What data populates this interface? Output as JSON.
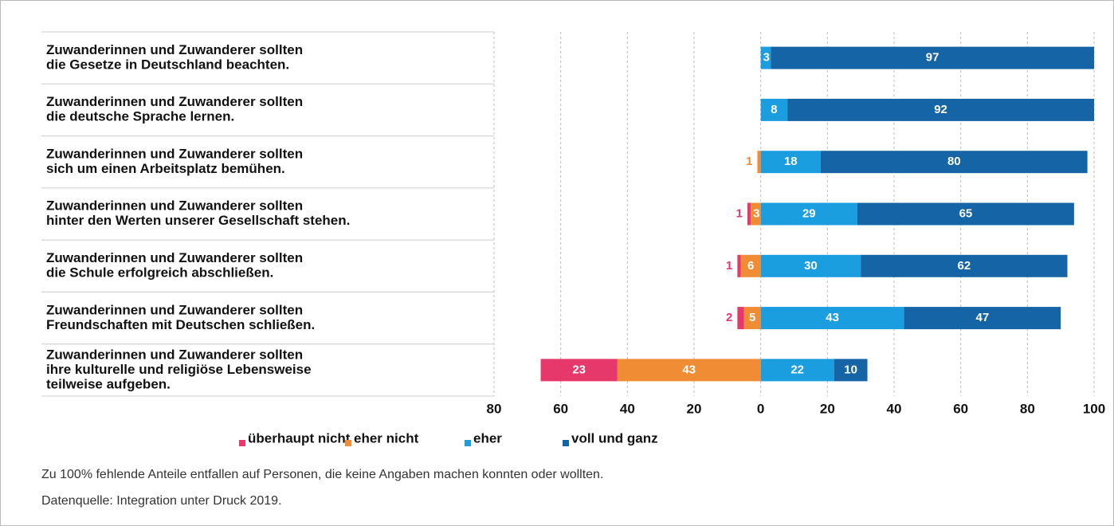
{
  "chart_data": {
    "type": "diverging-bar",
    "categories": [
      [
        "Zuwanderinnen und Zuwanderer sollten",
        "die Gesetze in Deutschland beachten."
      ],
      [
        "Zuwanderinnen und Zuwanderer sollten",
        "die deutsche Sprache lernen."
      ],
      [
        "Zuwanderinnen und Zuwanderer sollten",
        "sich um einen Arbeitsplatz bemühen."
      ],
      [
        "Zuwanderinnen und Zuwanderer sollten",
        "hinter den Werten unserer Gesellschaft stehen."
      ],
      [
        "Zuwanderinnen und Zuwanderer sollten",
        "die Schule erfolgreich abschließen."
      ],
      [
        "Zuwanderinnen und Zuwanderer sollten",
        "Freundschaften mit Deutschen schließen."
      ],
      [
        "Zuwanderinnen und Zuwanderer sollten",
        "ihre kulturelle und religiöse Lebensweise",
        "teilweise aufgeben."
      ]
    ],
    "series": [
      {
        "name": "überhaupt nicht",
        "color": "#e6386a",
        "side": "negative",
        "values": [
          null,
          null,
          null,
          1,
          1,
          2,
          23
        ]
      },
      {
        "name": "eher nicht",
        "color": "#f08c34",
        "side": "negative",
        "values": [
          null,
          null,
          1,
          3,
          6,
          5,
          43
        ]
      },
      {
        "name": "eher",
        "color": "#1a9ee0",
        "side": "positive",
        "values": [
          3,
          8,
          18,
          29,
          30,
          43,
          22
        ]
      },
      {
        "name": "voll und ganz",
        "color": "#1565a6",
        "side": "positive",
        "values": [
          97,
          92,
          80,
          65,
          62,
          47,
          10
        ]
      }
    ],
    "xlim": [
      -80,
      100
    ],
    "xticks": [
      {
        "value": -80,
        "label": "80"
      },
      {
        "value": -60,
        "label": "60"
      },
      {
        "value": -40,
        "label": "40"
      },
      {
        "value": -20,
        "label": "20"
      },
      0,
      20,
      40,
      60,
      80,
      100
    ],
    "grid": true,
    "note": "Zu 100% fehlende Anteile entfallen auf Personen, die keine Angaben machen konnten oder wollten.",
    "source": "Datenquelle: Integration unter Druck 2019."
  }
}
